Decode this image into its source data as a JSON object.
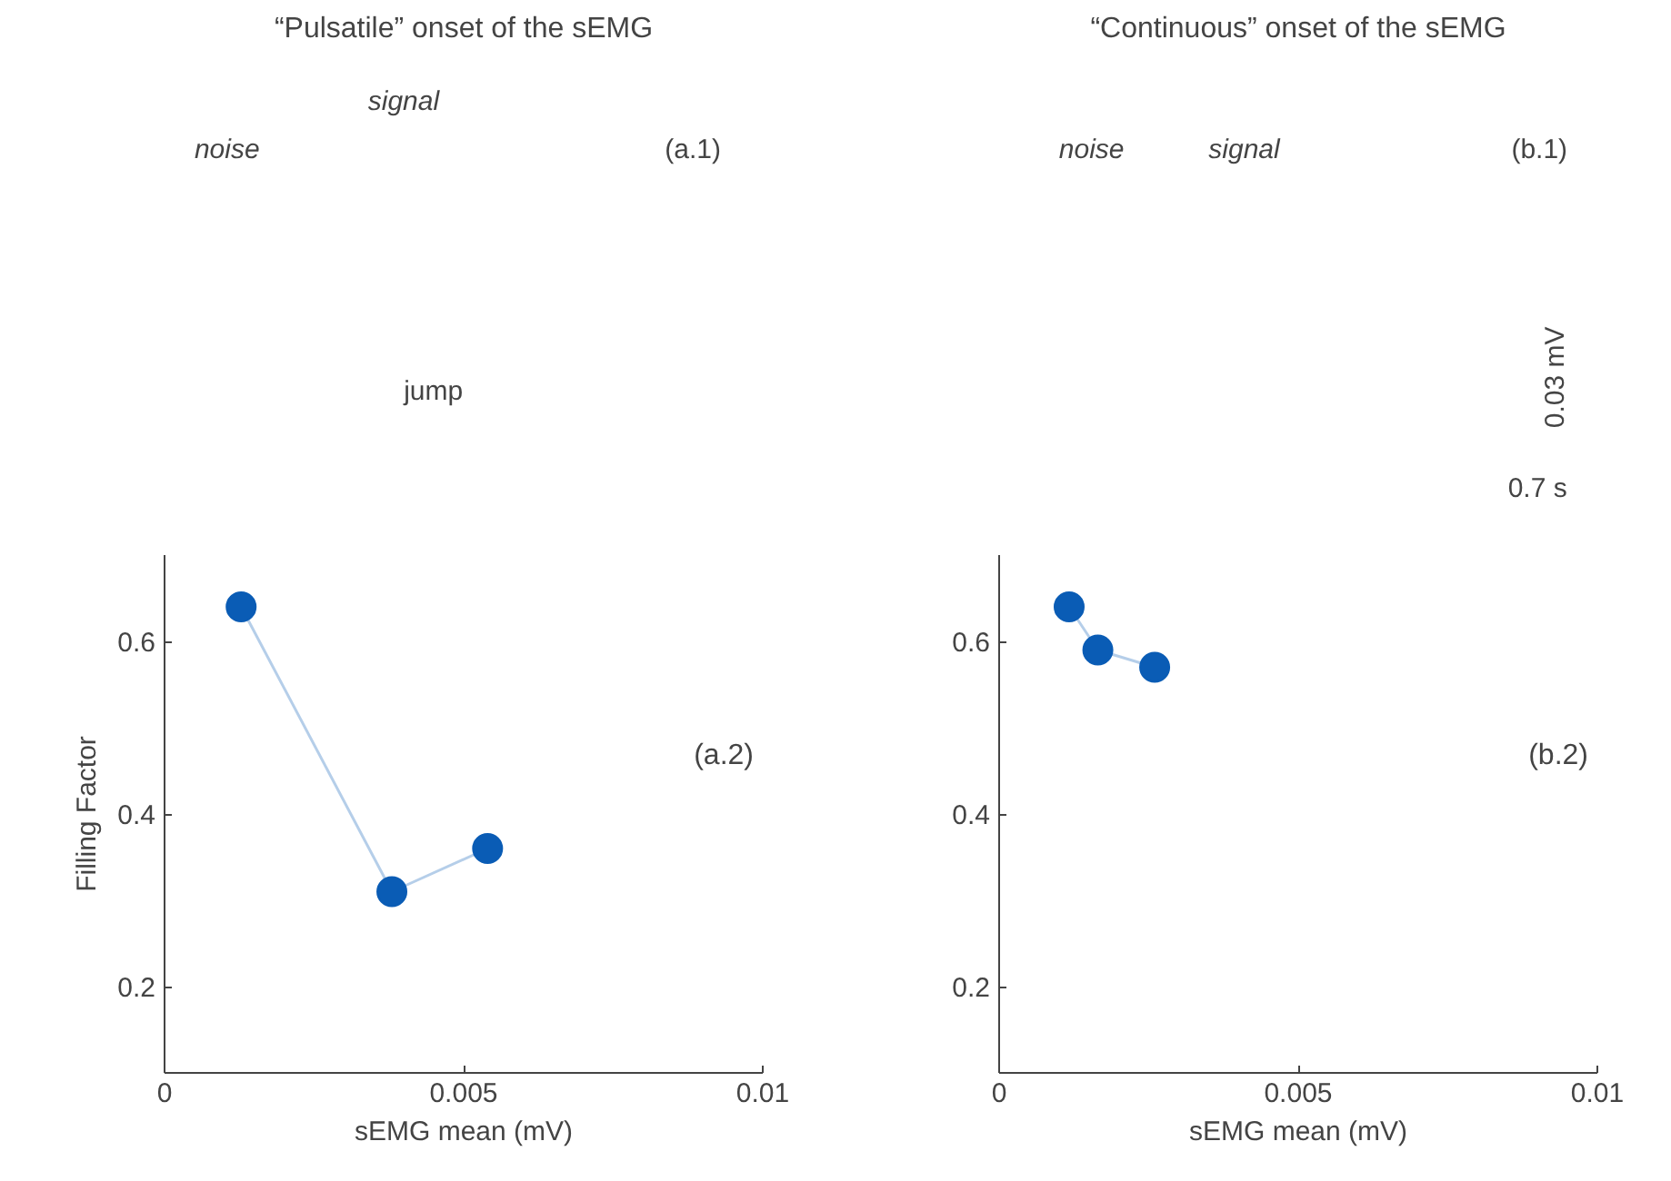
{
  "chart_data": [
    {
      "type": "line",
      "title": "“Pulsatile” onset of the sEMG",
      "xlabel": "sEMG mean (mV)",
      "ylabel": "Filling Factor",
      "annotations": [
        "(a.1)",
        "noise",
        "signal",
        "jump",
        "(a.2)"
      ],
      "x": [
        0.00128,
        0.0038,
        0.0054
      ],
      "series": [
        {
          "color": "#0a5cb5",
          "values": [
            0.64,
            0.31,
            0.36
          ]
        }
      ],
      "marker": "circle",
      "xlim": [
        0,
        0.01
      ],
      "ylim": [
        0.1,
        0.7
      ],
      "xticks": [
        0,
        0.005,
        0.01
      ],
      "yticks": [
        0.2,
        0.4,
        0.6
      ],
      "grid": false
    },
    {
      "type": "line",
      "title": "“Continuous” onset of the sEMG",
      "xlabel": "sEMG mean (mV)",
      "annotations": [
        "(b.1)",
        "noise",
        "signal",
        "0.03 mV",
        "0.7 s",
        "(b.2)"
      ],
      "x": [
        0.00117,
        0.00165,
        0.0026
      ],
      "series": [
        {
          "color": "#0a5cb5",
          "values": [
            0.64,
            0.59,
            0.57
          ]
        }
      ],
      "marker": "circle",
      "xlim": [
        0,
        0.01
      ],
      "ylim": [
        0.1,
        0.7
      ],
      "xticks": [
        0,
        0.005,
        0.01
      ],
      "yticks": [
        0.2,
        0.4,
        0.6
      ],
      "grid": false
    }
  ]
}
